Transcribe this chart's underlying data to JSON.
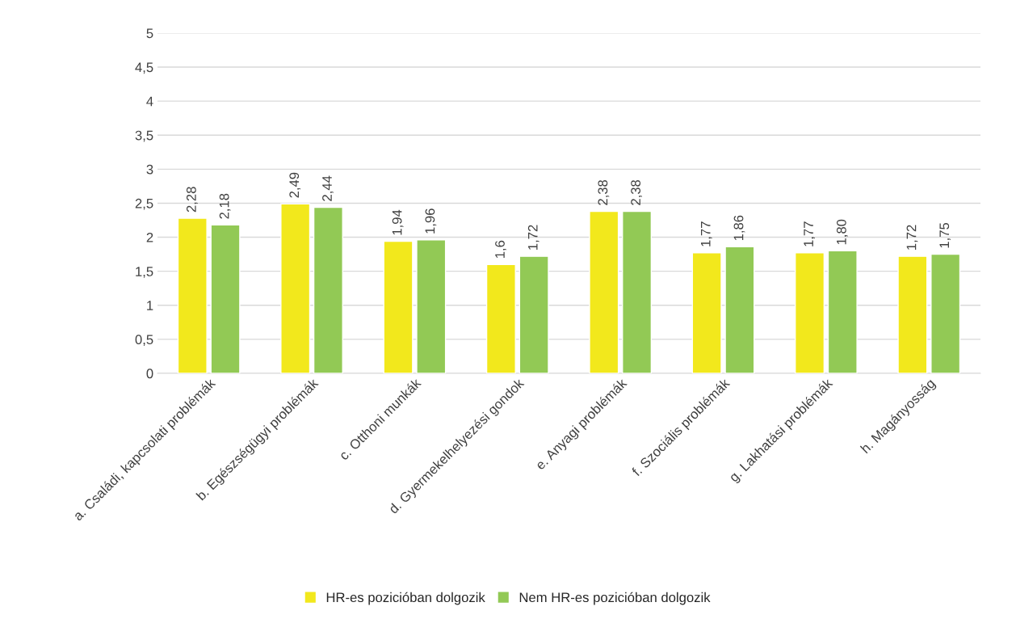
{
  "chart_data": {
    "type": "bar",
    "categories": [
      "a. Családi, kapcsolati problémák",
      "b. Egészségügyi problémák",
      "c. Otthoni munkák",
      "d. Gyermekelhelyezési gondok",
      "e. Anyagi problémák",
      "f. Szociális problémák",
      "g. Lakhatási problémák",
      "h. Magányosság"
    ],
    "series": [
      {
        "name": "HR-es pozicióban dolgozik",
        "color": "#f2e81c",
        "values": [
          2.28,
          2.49,
          1.94,
          1.6,
          2.38,
          1.77,
          1.77,
          1.72
        ],
        "value_labels": [
          "2,28",
          "2,49",
          "1,94",
          "1,6",
          "2,38",
          "1,77",
          "1,77",
          "1,72"
        ]
      },
      {
        "name": "Nem HR-es pozicióban dolgozik",
        "color": "#92c955",
        "values": [
          2.18,
          2.44,
          1.96,
          1.72,
          2.38,
          1.86,
          1.8,
          1.75
        ],
        "value_labels": [
          "2,18",
          "2,44",
          "1,96",
          "1,72",
          "2,38",
          "1,86",
          "1,80",
          "1,75"
        ]
      }
    ],
    "ylim": [
      0,
      5
    ],
    "yticks": [
      0,
      {
        "value": 0.5,
        "label": "0,5"
      },
      1,
      {
        "value": 1.5,
        "label": "1,5"
      },
      2,
      {
        "value": 2.5,
        "label": "2,5"
      },
      3,
      {
        "value": 3.5,
        "label": "3,5"
      },
      4,
      {
        "value": 4.5,
        "label": "4,5"
      },
      5
    ],
    "grid": "y",
    "legend": "bottom"
  }
}
